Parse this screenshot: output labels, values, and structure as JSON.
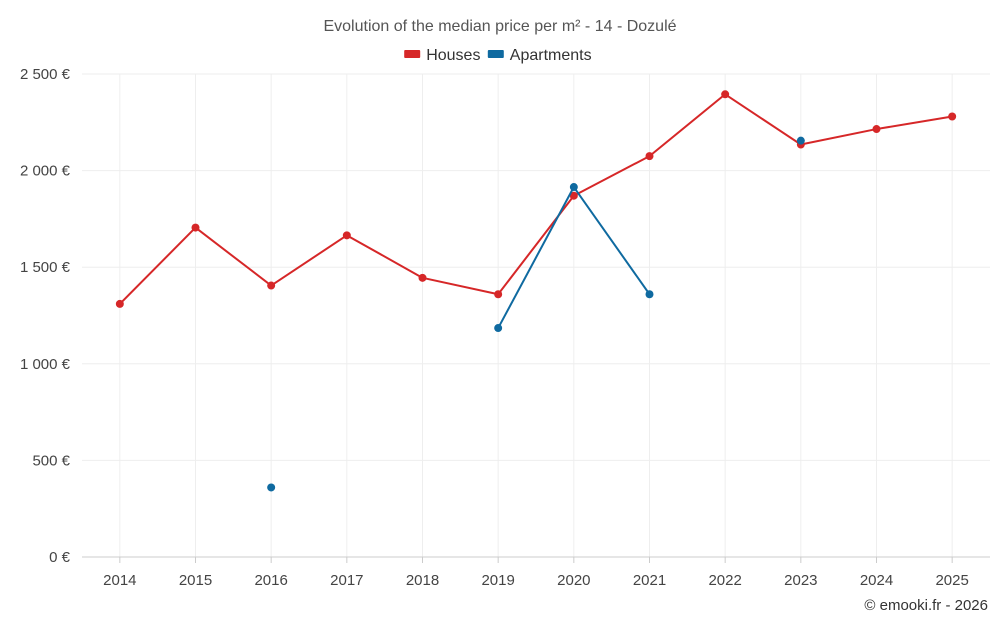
{
  "chart_data": {
    "type": "line",
    "title": "Evolution of the median price per m² - 14 - Dozulé",
    "categories": [
      "2014",
      "2015",
      "2016",
      "2017",
      "2018",
      "2019",
      "2020",
      "2021",
      "2022",
      "2023",
      "2024",
      "2025"
    ],
    "ylim": [
      0,
      2500
    ],
    "y_ticks": [
      0,
      500,
      1000,
      1500,
      2000,
      2500
    ],
    "y_tick_labels": [
      "0 €",
      "500 €",
      "1 000 €",
      "1 500 €",
      "2 000 €",
      "2 500 €"
    ],
    "grid": true,
    "legend_position": "top-center",
    "series": [
      {
        "name": "Houses",
        "color": "#d62728",
        "values": [
          1310,
          1705,
          1405,
          1665,
          1445,
          1360,
          1870,
          2075,
          2395,
          2135,
          2215,
          2280
        ]
      },
      {
        "name": "Apartments",
        "color": "#0f6aa0",
        "values": [
          null,
          null,
          360,
          null,
          null,
          1185,
          1915,
          1360,
          null,
          2155,
          null,
          null
        ]
      }
    ]
  },
  "credit": "© emooki.fr - 2026"
}
